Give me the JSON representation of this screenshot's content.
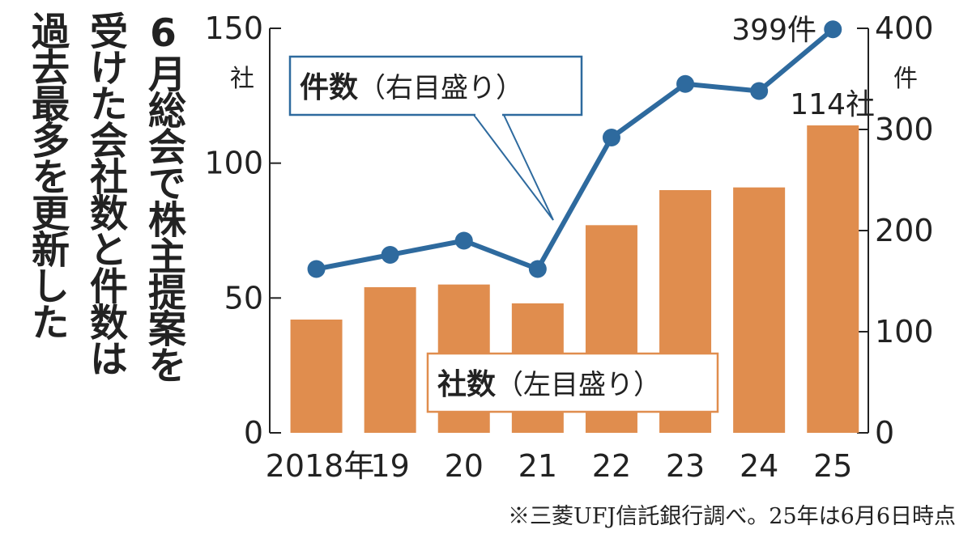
{
  "headline": {
    "columns": [
      "6月総会で株主提案を",
      "受けた会社数と件数は",
      "過去最多を更新した"
    ]
  },
  "chart_data": {
    "type": "bar",
    "categories": [
      "2018年",
      "19",
      "20",
      "21",
      "22",
      "23",
      "24",
      "25"
    ],
    "series": [
      {
        "name": "社数",
        "axis": "left",
        "kind": "bar",
        "values": [
          42,
          54,
          55,
          48,
          77,
          90,
          91,
          114
        ],
        "color": "#E08D4E"
      },
      {
        "name": "件数",
        "axis": "right",
        "kind": "line",
        "values": [
          162,
          176,
          190,
          162,
          292,
          345,
          338,
          399
        ],
        "color": "#2E6A9E"
      }
    ],
    "left_axis": {
      "ticks": [
        "150",
        "100",
        "50",
        "0"
      ],
      "unit": "社",
      "ylim": [
        0,
        150
      ]
    },
    "right_axis": {
      "ticks": [
        "400",
        "300",
        "200",
        "100",
        "0"
      ],
      "unit": "件",
      "ylim": [
        0,
        400
      ]
    },
    "legend": {
      "count_line": {
        "bold": "件数",
        "normal": "（右目盛り）"
      },
      "companies_bar": {
        "bold": "社数",
        "normal": "（左目盛り）"
      }
    },
    "annotations": {
      "last_line": "399件",
      "last_bar": "114社"
    },
    "source_note": "※三菱UFJ信託銀行調べ。25年は6月6日時点",
    "grid": false
  }
}
